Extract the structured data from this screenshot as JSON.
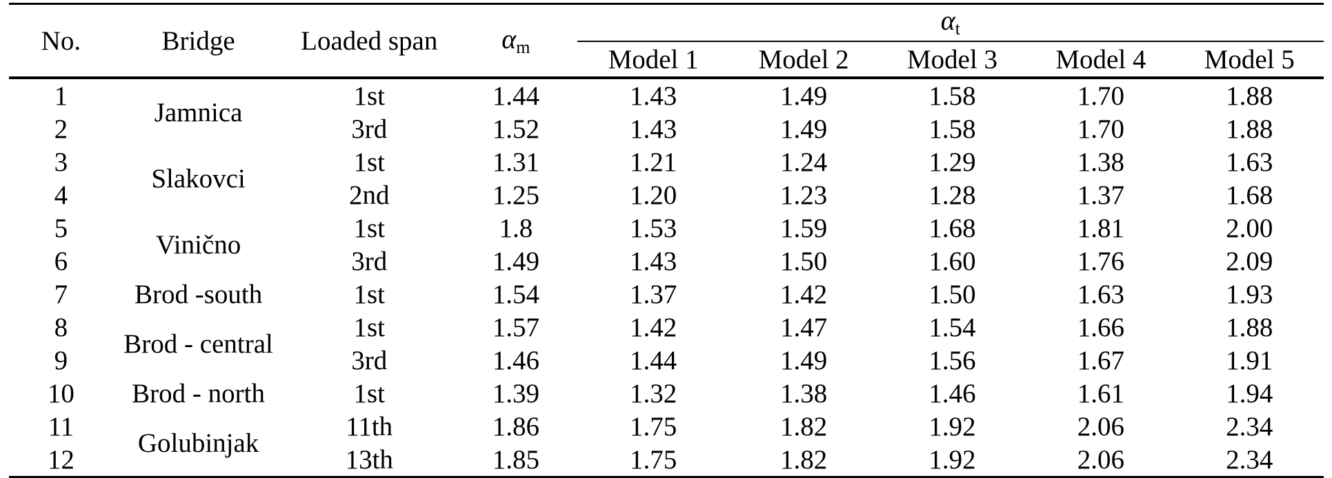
{
  "table": {
    "headers": {
      "no": "No.",
      "bridge": "Bridge",
      "loaded_span": "Loaded span",
      "alpha_m_symbol": "α",
      "alpha_m_sub": "m",
      "alpha_t_symbol": "α",
      "alpha_t_sub": "t",
      "models": [
        "Model 1",
        "Model 2",
        "Model 3",
        "Model 4",
        "Model 5"
      ]
    },
    "bridge_groups": [
      {
        "name": "Jamnica",
        "rows": 2
      },
      {
        "name": "Slakovci",
        "rows": 2
      },
      {
        "name": "Vinično",
        "rows": 2
      },
      {
        "name": "Brod -south",
        "rows": 1
      },
      {
        "name": "Brod - central",
        "rows": 2
      },
      {
        "name": "Brod - north",
        "rows": 1
      },
      {
        "name": "Golubinjak",
        "rows": 2
      }
    ],
    "rows": [
      {
        "no": "1",
        "span": "1st",
        "alpha_m": "1.44",
        "models": [
          "1.43",
          "1.49",
          "1.58",
          "1.70",
          "1.88"
        ]
      },
      {
        "no": "2",
        "span": "3rd",
        "alpha_m": "1.52",
        "models": [
          "1.43",
          "1.49",
          "1.58",
          "1.70",
          "1.88"
        ]
      },
      {
        "no": "3",
        "span": "1st",
        "alpha_m": "1.31",
        "models": [
          "1.21",
          "1.24",
          "1.29",
          "1.38",
          "1.63"
        ]
      },
      {
        "no": "4",
        "span": "2nd",
        "alpha_m": "1.25",
        "models": [
          "1.20",
          "1.23",
          "1.28",
          "1.37",
          "1.68"
        ]
      },
      {
        "no": "5",
        "span": "1st",
        "alpha_m": "1.8",
        "models": [
          "1.53",
          "1.59",
          "1.68",
          "1.81",
          "2.00"
        ]
      },
      {
        "no": "6",
        "span": "3rd",
        "alpha_m": "1.49",
        "models": [
          "1.43",
          "1.50",
          "1.60",
          "1.76",
          "2.09"
        ]
      },
      {
        "no": "7",
        "span": "1st",
        "alpha_m": "1.54",
        "models": [
          "1.37",
          "1.42",
          "1.50",
          "1.63",
          "1.93"
        ]
      },
      {
        "no": "8",
        "span": "1st",
        "alpha_m": "1.57",
        "models": [
          "1.42",
          "1.47",
          "1.54",
          "1.66",
          "1.88"
        ]
      },
      {
        "no": "9",
        "span": "3rd",
        "alpha_m": "1.46",
        "models": [
          "1.44",
          "1.49",
          "1.56",
          "1.67",
          "1.91"
        ]
      },
      {
        "no": "10",
        "span": "1st",
        "alpha_m": "1.39",
        "models": [
          "1.32",
          "1.38",
          "1.46",
          "1.61",
          "1.94"
        ]
      },
      {
        "no": "11",
        "span": "11th",
        "alpha_m": "1.86",
        "models": [
          "1.75",
          "1.82",
          "1.92",
          "2.06",
          "2.34"
        ]
      },
      {
        "no": "12",
        "span": "13th",
        "alpha_m": "1.85",
        "models": [
          "1.75",
          "1.82",
          "1.92",
          "2.06",
          "2.34"
        ]
      }
    ]
  }
}
